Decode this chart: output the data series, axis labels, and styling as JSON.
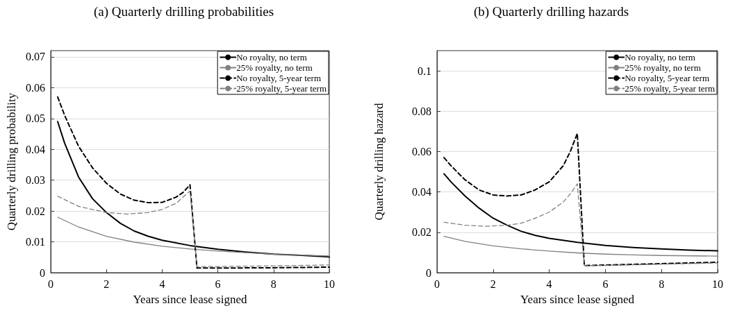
{
  "chart_data": [
    {
      "type": "line",
      "title": "(a) Quarterly drilling probabilities",
      "xlabel": "Years since lease signed",
      "ylabel": "Quarterly drilling probability",
      "xlim": [
        0,
        10
      ],
      "xticks": [
        0,
        2,
        4,
        6,
        8,
        10
      ],
      "ylim": [
        0,
        0.072
      ],
      "yticks": [
        0,
        0.01,
        0.02,
        0.03,
        0.04,
        0.05,
        0.06,
        0.07
      ],
      "grid": "y",
      "legend": "top right",
      "marker": "none",
      "series": [
        {
          "name": "No royalty, no term",
          "color": "#000000",
          "line_style": "solid",
          "x": [
            0.25,
            0.5,
            1,
            1.5,
            2,
            2.5,
            3,
            3.5,
            4,
            5,
            6,
            7,
            8,
            9,
            10
          ],
          "values": [
            0.049,
            0.042,
            0.031,
            0.024,
            0.0195,
            0.016,
            0.0135,
            0.0118,
            0.0105,
            0.0088,
            0.0076,
            0.0067,
            0.006,
            0.0056,
            0.0051
          ]
        },
        {
          "name": "25% royalty, no term",
          "color": "#808080",
          "line_style": "solid",
          "x": [
            0.25,
            1,
            2,
            3,
            4,
            5,
            6,
            7,
            8,
            9,
            10
          ],
          "values": [
            0.018,
            0.0148,
            0.0118,
            0.0099,
            0.0086,
            0.0077,
            0.007,
            0.0065,
            0.006,
            0.0057,
            0.0054
          ]
        },
        {
          "name": "No royalty, 5-year term",
          "color": "#000000",
          "line_style": "dashed",
          "x": [
            0.25,
            0.5,
            1,
            1.5,
            2,
            2.5,
            3,
            3.5,
            4,
            4.5,
            4.75,
            5,
            5.25,
            6,
            8,
            10
          ],
          "values": [
            0.057,
            0.051,
            0.041,
            0.034,
            0.029,
            0.0255,
            0.0235,
            0.0227,
            0.0228,
            0.0245,
            0.026,
            0.0285,
            0.0015,
            0.0015,
            0.0016,
            0.0018
          ]
        },
        {
          "name": "25% royalty, 5-year term",
          "color": "#808080",
          "line_style": "dashed",
          "x": [
            0.25,
            1,
            2,
            2.75,
            3.5,
            4,
            4.5,
            5,
            5.25,
            6,
            8,
            10
          ],
          "values": [
            0.0248,
            0.0215,
            0.0195,
            0.019,
            0.0195,
            0.0205,
            0.0225,
            0.0265,
            0.002,
            0.002,
            0.0022,
            0.0025
          ]
        }
      ]
    },
    {
      "type": "line",
      "title": "(b) Quarterly drilling hazards",
      "xlabel": "Years since lease signed",
      "ylabel": "Quarterly drilling hazard",
      "xlim": [
        0,
        10
      ],
      "xticks": [
        0,
        2,
        4,
        6,
        8,
        10
      ],
      "ylim": [
        0,
        0.11
      ],
      "yticks": [
        0,
        0.02,
        0.04,
        0.06,
        0.08,
        0.1
      ],
      "grid": "y",
      "legend": "top right",
      "marker": "none",
      "series": [
        {
          "name": "No royalty, no term",
          "color": "#000000",
          "line_style": "solid",
          "x": [
            0.25,
            0.5,
            1,
            1.5,
            2,
            2.5,
            3,
            3.5,
            4,
            5,
            6,
            7,
            8,
            9,
            10
          ],
          "values": [
            0.049,
            0.045,
            0.038,
            0.032,
            0.027,
            0.0235,
            0.0205,
            0.0185,
            0.017,
            0.015,
            0.0135,
            0.0125,
            0.0118,
            0.0112,
            0.0108
          ]
        },
        {
          "name": "25% royalty, no term",
          "color": "#808080",
          "line_style": "solid",
          "x": [
            0.25,
            1,
            2,
            3,
            4,
            5,
            6,
            7,
            8,
            10
          ],
          "values": [
            0.018,
            0.0155,
            0.0133,
            0.0118,
            0.0107,
            0.0098,
            0.0092,
            0.0088,
            0.0085,
            0.0082
          ]
        },
        {
          "name": "No royalty, 5-year term",
          "color": "#000000",
          "line_style": "dashed",
          "x": [
            0.25,
            0.5,
            1,
            1.5,
            2,
            2.5,
            3,
            3.5,
            4,
            4.5,
            4.75,
            5,
            5.25,
            6,
            8,
            10
          ],
          "values": [
            0.057,
            0.053,
            0.046,
            0.041,
            0.0385,
            0.038,
            0.0385,
            0.041,
            0.045,
            0.053,
            0.06,
            0.069,
            0.0035,
            0.0038,
            0.0045,
            0.0052
          ]
        },
        {
          "name": "25% royalty, 5-year term",
          "color": "#808080",
          "line_style": "dashed",
          "x": [
            0.25,
            1,
            1.75,
            2.5,
            3,
            3.5,
            4,
            4.5,
            4.75,
            5,
            5.25,
            6,
            8,
            10
          ],
          "values": [
            0.025,
            0.0235,
            0.023,
            0.0235,
            0.0245,
            0.027,
            0.03,
            0.035,
            0.039,
            0.044,
            0.0035,
            0.0036,
            0.0042,
            0.0048
          ]
        }
      ]
    }
  ]
}
